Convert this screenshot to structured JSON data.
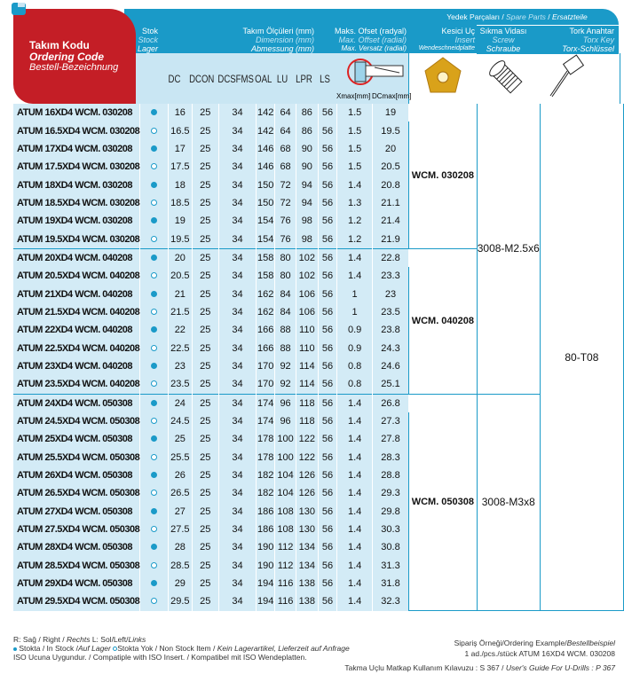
{
  "header": {
    "code": {
      "tr": "Takım Kodu",
      "en": "Ordering Code",
      "de": "Bestell-Bezeichnung"
    },
    "stock": {
      "tr": "Stok",
      "en": "Stock",
      "de": "Lager"
    },
    "dims": {
      "tr": "Takım Ölçüleri (mm)",
      "en": "Dimension (mm)",
      "de": "Abmessung (mm)"
    },
    "offset": {
      "tr": "Maks. Ofset (radyal)",
      "en": "Max. Offset (radial)",
      "de": "Max. Versatz (radial)"
    },
    "insert": {
      "tr": "Kesici Uç",
      "en": "Insert",
      "de": "Wendeschneidplatte"
    },
    "spare": {
      "tr": "Yedek Parçaları / ",
      "en": "Spare Parts",
      "sep": " / ",
      "de": "Ersatzteile"
    },
    "screw": {
      "tr": "Sıkma Vidası",
      "en": "Screw",
      "de": "Schraube"
    },
    "key": {
      "tr": "Tork Anahtar",
      "en": "Torx Key",
      "de": "Torx-Schlüssel"
    },
    "columns": [
      "DC",
      "DCON",
      "DCSFMS",
      "OAL",
      "LU",
      "LPR",
      "LS"
    ],
    "xmax": "Xmax[mm]",
    "dcmax": "DCmax[mm]"
  },
  "colors": {
    "header": "#1a9ac8",
    "code_header": "#c41e26",
    "row_bg": "#d3ebf6",
    "insert": "#d9a21a"
  },
  "rows": [
    [
      "ATUM  16XD4  WCM.  030208",
      "in",
      "16",
      "25",
      "34",
      "142",
      "64",
      "86",
      "56",
      "1.5",
      "19"
    ],
    [
      "ATUM  16.5XD4  WCM.  030208",
      "out",
      "16.5",
      "25",
      "34",
      "142",
      "64",
      "86",
      "56",
      "1.5",
      "19.5"
    ],
    [
      "ATUM  17XD4  WCM.  030208",
      "in",
      "17",
      "25",
      "34",
      "146",
      "68",
      "90",
      "56",
      "1.5",
      "20"
    ],
    [
      "ATUM  17.5XD4  WCM.  030208",
      "out",
      "17.5",
      "25",
      "34",
      "146",
      "68",
      "90",
      "56",
      "1.5",
      "20.5"
    ],
    [
      "ATUM  18XD4  WCM.  030208",
      "in",
      "18",
      "25",
      "34",
      "150",
      "72",
      "94",
      "56",
      "1.4",
      "20.8"
    ],
    [
      "ATUM  18.5XD4  WCM.  030208",
      "out",
      "18.5",
      "25",
      "34",
      "150",
      "72",
      "94",
      "56",
      "1.3",
      "21.1"
    ],
    [
      "ATUM  19XD4  WCM.  030208",
      "in",
      "19",
      "25",
      "34",
      "154",
      "76",
      "98",
      "56",
      "1.2",
      "21.4"
    ],
    [
      "ATUM  19.5XD4  WCM.  030208",
      "out",
      "19.5",
      "25",
      "34",
      "154",
      "76",
      "98",
      "56",
      "1.2",
      "21.9"
    ],
    [
      "ATUM  20XD4  WCM.  040208",
      "in",
      "20",
      "25",
      "34",
      "158",
      "80",
      "102",
      "56",
      "1.4",
      "22.8"
    ],
    [
      "ATUM  20.5XD4  WCM.  040208",
      "out",
      "20.5",
      "25",
      "34",
      "158",
      "80",
      "102",
      "56",
      "1.4",
      "23.3"
    ],
    [
      "ATUM  21XD4  WCM.  040208",
      "in",
      "21",
      "25",
      "34",
      "162",
      "84",
      "106",
      "56",
      "1",
      "23"
    ],
    [
      "ATUM  21.5XD4  WCM.  040208",
      "out",
      "21.5",
      "25",
      "34",
      "162",
      "84",
      "106",
      "56",
      "1",
      "23.5"
    ],
    [
      "ATUM  22XD4  WCM.  040208",
      "in",
      "22",
      "25",
      "34",
      "166",
      "88",
      "110",
      "56",
      "0.9",
      "23.8"
    ],
    [
      "ATUM  22.5XD4  WCM.  040208",
      "out",
      "22.5",
      "25",
      "34",
      "166",
      "88",
      "110",
      "56",
      "0.9",
      "24.3"
    ],
    [
      "ATUM  23XD4  WCM.  040208",
      "in",
      "23",
      "25",
      "34",
      "170",
      "92",
      "114",
      "56",
      "0.8",
      "24.6"
    ],
    [
      "ATUM  23.5XD4  WCM.  040208",
      "out",
      "23.5",
      "25",
      "34",
      "170",
      "92",
      "114",
      "56",
      "0.8",
      "25.1"
    ],
    [
      "ATUM  24XD4  WCM.  050308",
      "in",
      "24",
      "25",
      "34",
      "174",
      "96",
      "118",
      "56",
      "1.4",
      "26.8"
    ],
    [
      "ATUM  24.5XD4  WCM.  050308",
      "out",
      "24.5",
      "25",
      "34",
      "174",
      "96",
      "118",
      "56",
      "1.4",
      "27.3"
    ],
    [
      "ATUM  25XD4  WCM.  050308",
      "in",
      "25",
      "25",
      "34",
      "178",
      "100",
      "122",
      "56",
      "1.4",
      "27.8"
    ],
    [
      "ATUM  25.5XD4  WCM.  050308",
      "out",
      "25.5",
      "25",
      "34",
      "178",
      "100",
      "122",
      "56",
      "1.4",
      "28.3"
    ],
    [
      "ATUM  26XD4  WCM.  050308",
      "in",
      "26",
      "25",
      "34",
      "182",
      "104",
      "126",
      "56",
      "1.4",
      "28.8"
    ],
    [
      "ATUM  26.5XD4  WCM.  050308",
      "out",
      "26.5",
      "25",
      "34",
      "182",
      "104",
      "126",
      "56",
      "1.4",
      "29.3"
    ],
    [
      "ATUM  27XD4  WCM.  050308",
      "in",
      "27",
      "25",
      "34",
      "186",
      "108",
      "130",
      "56",
      "1.4",
      "29.8"
    ],
    [
      "ATUM  27.5XD4  WCM.  050308",
      "out",
      "27.5",
      "25",
      "34",
      "186",
      "108",
      "130",
      "56",
      "1.4",
      "30.3"
    ],
    [
      "ATUM  28XD4  WCM.  050308",
      "in",
      "28",
      "25",
      "34",
      "190",
      "112",
      "134",
      "56",
      "1.4",
      "30.8"
    ],
    [
      "ATUM  28.5XD4  WCM.  050308",
      "out",
      "28.5",
      "25",
      "34",
      "190",
      "112",
      "134",
      "56",
      "1.4",
      "31.3"
    ],
    [
      "ATUM  29XD4  WCM.  050308",
      "in",
      "29",
      "25",
      "34",
      "194",
      "116",
      "138",
      "56",
      "1.4",
      "31.8"
    ],
    [
      "ATUM  29.5XD4  WCM.  050308",
      "out",
      "29.5",
      "25",
      "34",
      "194",
      "116",
      "138",
      "56",
      "1.4",
      "32.3"
    ]
  ],
  "groups": [
    {
      "insert": "WCM. 030208",
      "screw": "3008-M2.5x6",
      "key": "80-T08",
      "rows": 8
    },
    {
      "insert": "WCM. 040208",
      "rows": 8
    },
    {
      "insert": "WCM. 050308",
      "screw": "3008-M3x8",
      "rows": 12
    }
  ],
  "footer": {
    "l1a": "R: Sağ / Right / ",
    "l1b": "Rechts",
    "l1c": "   L: Sol/Left/",
    "l1d": "Links",
    "l2a": "Stokta / In Stock /",
    "l2b": "Auf Lager",
    "l2c": "Stokta Yok / Non Stock Item / ",
    "l2d": "Kein Lagerartikel, Lieferzeit auf Anfrage",
    "l3": "ISO Ucuna Uygundur. / Compatiple with ISO Insert. / Kompatibel mit ISO Wendeplatten.",
    "r1a": "Sipariş Örneği/Ordering Example/",
    "r1b": "Bestellbeispiel",
    "r2": "1 ad./pcs./stück ATUM 16XD4 WCM. 030208",
    "r3a": "Takma Uçlu Matkap Kullanım Kılavuzu : S 367 / ",
    "r3b": "User's Guide For U-Drills : P 367"
  }
}
